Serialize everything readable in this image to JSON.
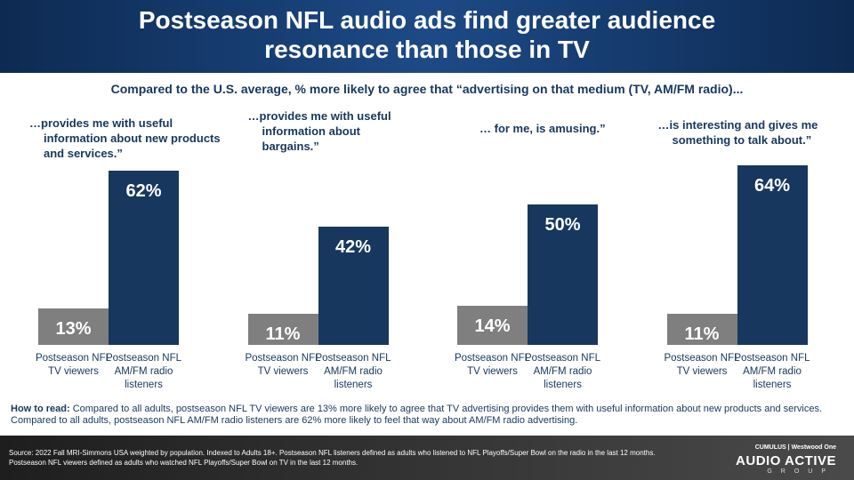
{
  "header": {
    "title": "Postseason NFL audio ads find greater audience resonance than those in TV"
  },
  "subtitle": "Compared to the U.S. average, % more likely to agree that “advertising on that medium (TV, AM/FM radio)...",
  "chart_data": [
    {
      "type": "bar",
      "title": "…provides me with useful information about new products and services.”",
      "categories": [
        "Postseason NFL TV viewers",
        "Postseason NFL AM/FM radio listeners"
      ],
      "values": [
        13,
        62
      ],
      "value_labels": [
        "13%",
        "62%"
      ],
      "colors": [
        "#7f7f7f",
        "#17375e"
      ]
    },
    {
      "type": "bar",
      "title": "…provides me with useful information about bargains.”",
      "categories": [
        "Postseason NFL TV viewers",
        "Postseason NFL AM/FM radio listeners"
      ],
      "values": [
        11,
        42
      ],
      "value_labels": [
        "11%",
        "42%"
      ],
      "colors": [
        "#7f7f7f",
        "#17375e"
      ]
    },
    {
      "type": "bar",
      "title": "… for me, is amusing.”",
      "categories": [
        "Postseason NFL TV viewers",
        "Postseason NFL AM/FM radio listeners"
      ],
      "values": [
        14,
        50
      ],
      "value_labels": [
        "14%",
        "50%"
      ],
      "colors": [
        "#7f7f7f",
        "#17375e"
      ]
    },
    {
      "type": "bar",
      "title": "…is interesting and gives me something to talk about.”",
      "categories": [
        "Postseason NFL TV viewers",
        "Postseason NFL AM/FM radio listeners"
      ],
      "values": [
        11,
        64
      ],
      "value_labels": [
        "11%",
        "64%"
      ],
      "colors": [
        "#7f7f7f",
        "#17375e"
      ]
    }
  ],
  "how_to_read": {
    "label": "How to read:",
    "text": "Compared to all adults, postseason NFL TV viewers are 13% more likely to agree that TV advertising provides them with useful information about new products and services. Compared to all adults, postseason NFL AM/FM radio listeners are 62% more likely to feel that way about AM/FM radio advertising."
  },
  "source": "Source: 2022 Fall MRI-Simmons USA weighted by population. Indexed to Adults 18+. Postseason NFL listeners defined as adults who listened to NFL Playoffs/Super Bowl on the radio in the last 12 months. Postseason NFL viewers defined as adults who watched NFL Playoffs/Super Bowl on TV in the last 12 months.",
  "logo": {
    "company": "CUMULUS | Westwood One",
    "brand": "AUDIO ACTIVE",
    "group": "GROUP"
  }
}
